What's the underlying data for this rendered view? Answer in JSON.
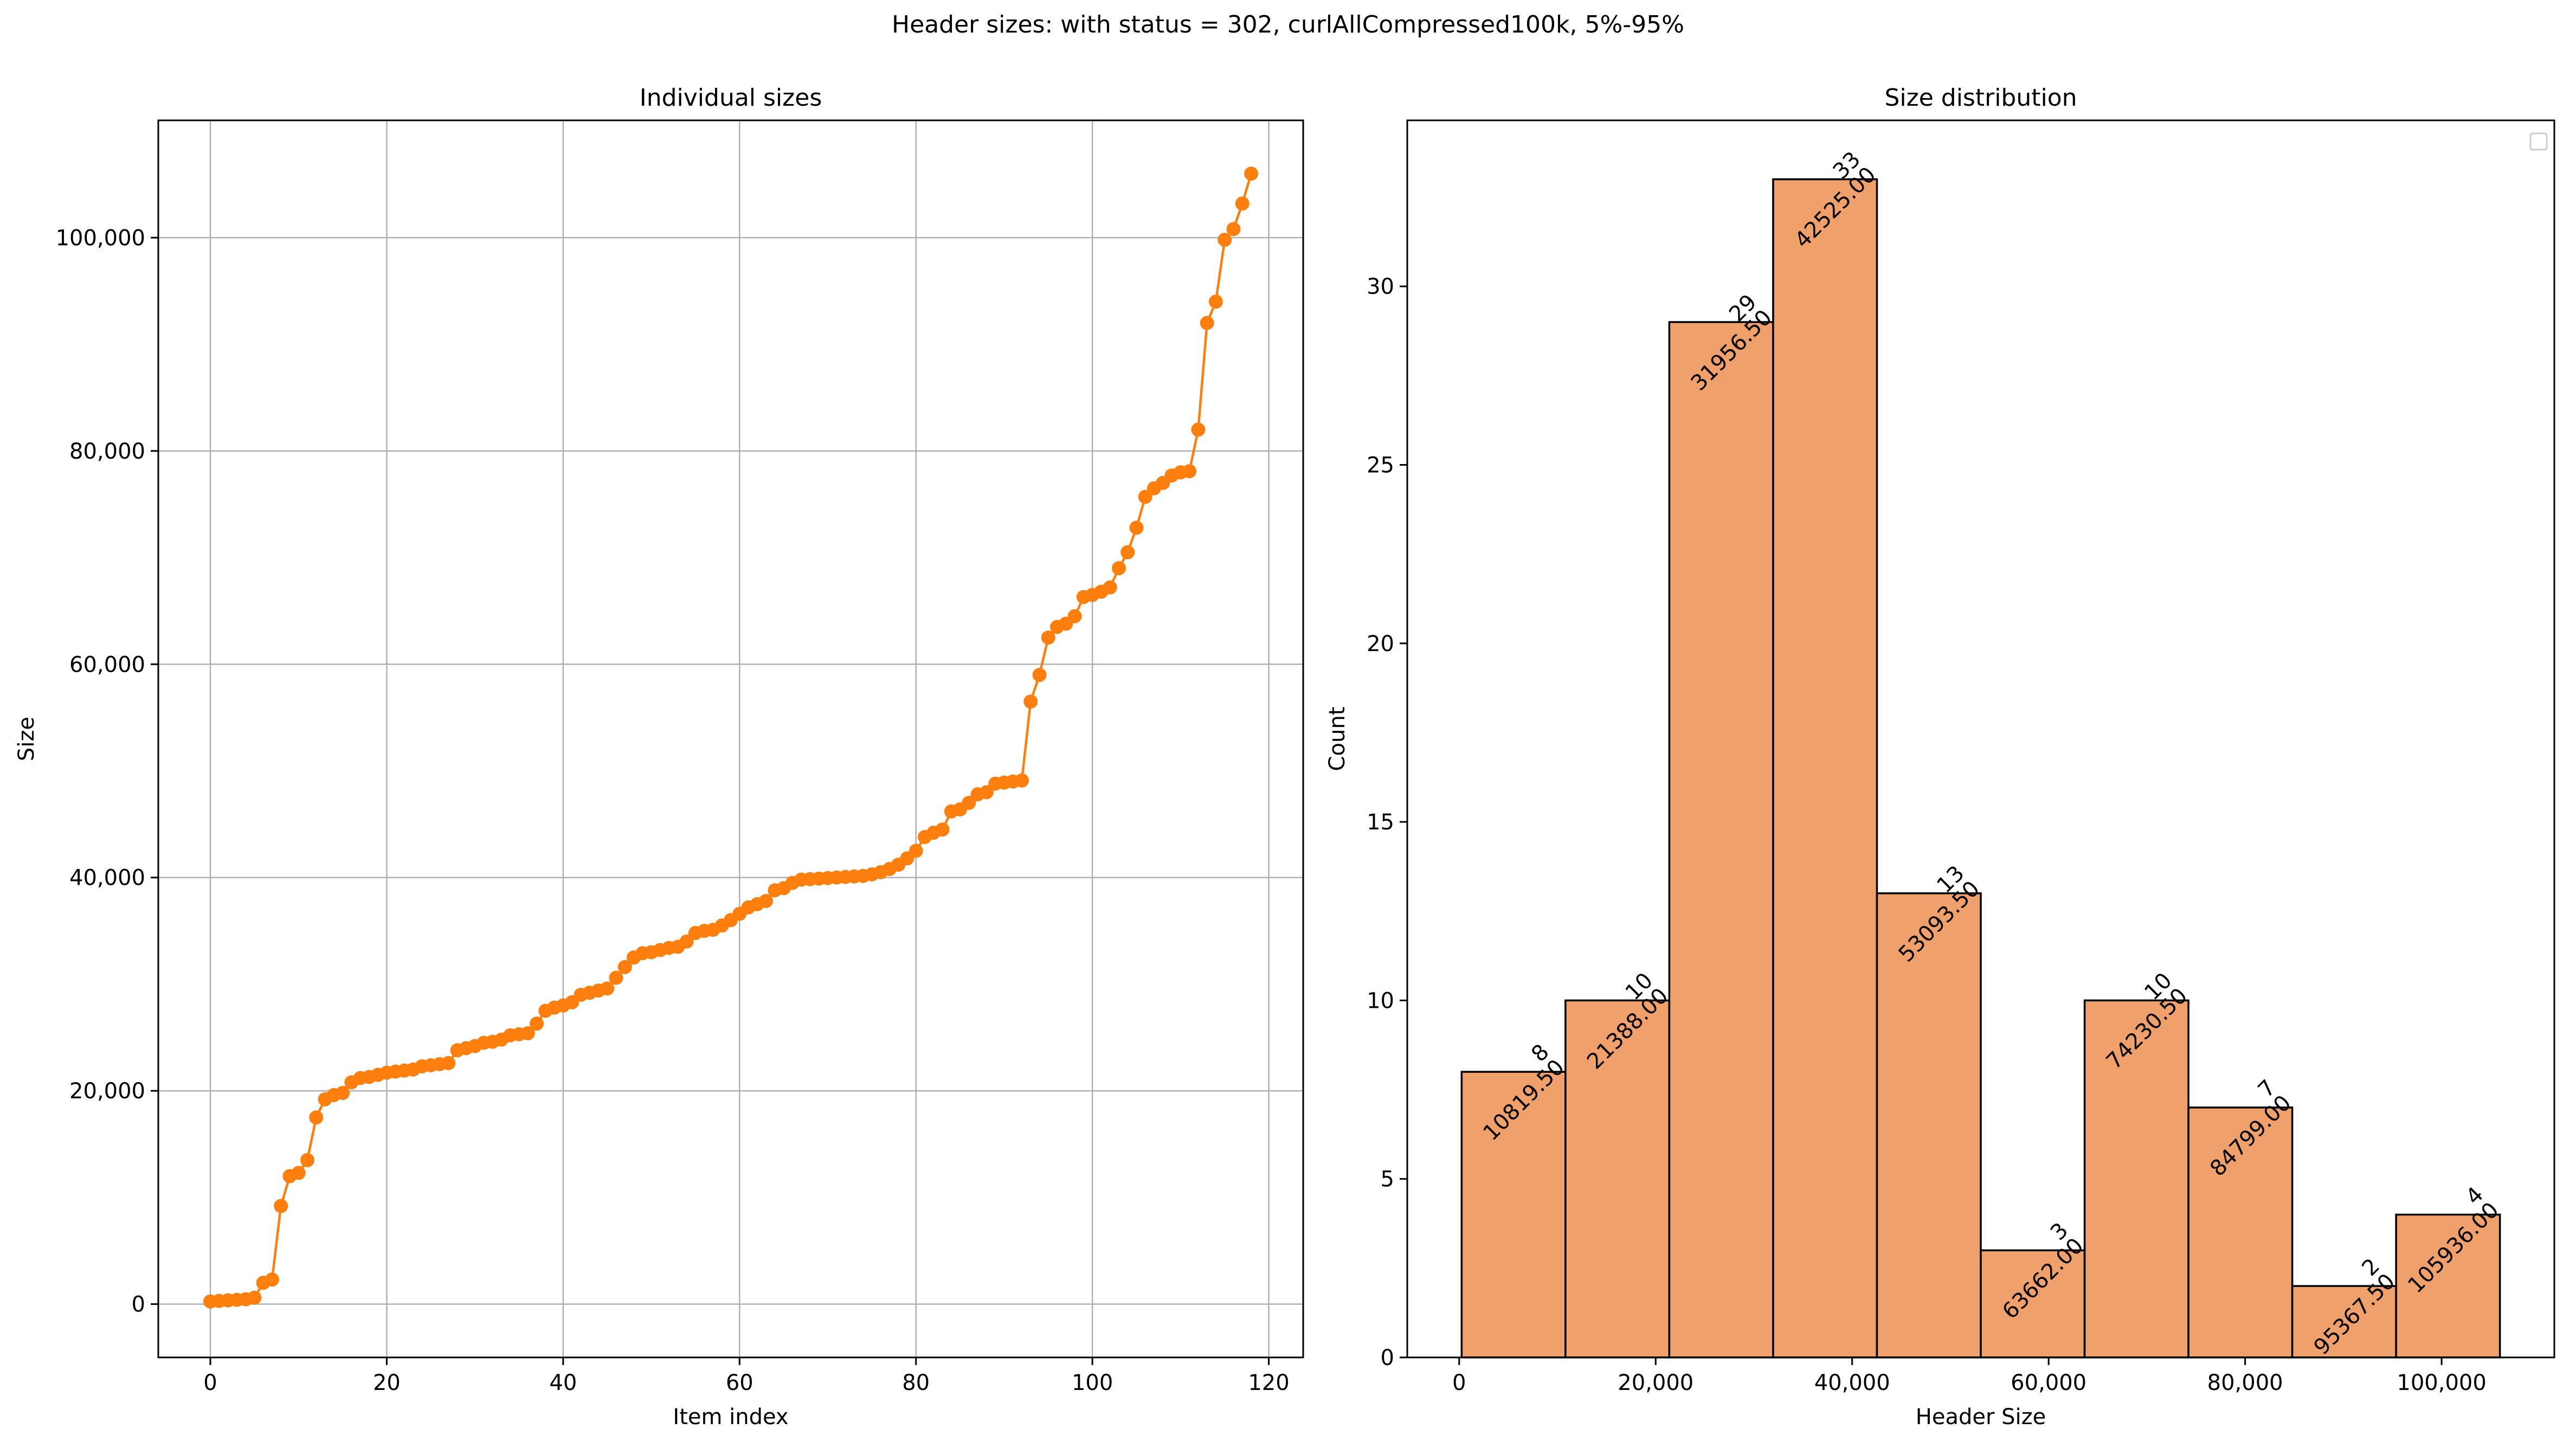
{
  "suptitle": "Header sizes: with status = 302, curlAllCompressed100k, 5%-95%",
  "chart_data": [
    {
      "type": "line",
      "title": "Individual sizes",
      "xlabel": "Item index",
      "ylabel": "Size",
      "xlim": [
        -5.9,
        123.9
      ],
      "ylim": [
        -5000,
        111000
      ],
      "grid": true,
      "marker": "circle",
      "color": "#ff7f0e",
      "x_ticks": [
        0,
        20,
        40,
        60,
        80,
        100,
        120
      ],
      "x_tick_labels": [
        "0",
        "20",
        "40",
        "60",
        "80",
        "100",
        "120"
      ],
      "y_ticks": [
        0,
        20000,
        40000,
        60000,
        80000,
        100000
      ],
      "y_tick_labels": [
        "0",
        "20,000",
        "40,000",
        "60,000",
        "80,000",
        "100,000"
      ],
      "values": [
        251,
        300,
        350,
        400,
        450,
        600,
        2000,
        2300,
        9200,
        12000,
        12300,
        13500,
        17500,
        19200,
        19600,
        19800,
        20800,
        21200,
        21300,
        21500,
        21700,
        21800,
        21900,
        22000,
        22300,
        22400,
        22500,
        22600,
        23800,
        24000,
        24200,
        24500,
        24600,
        24800,
        25200,
        25300,
        25400,
        26300,
        27500,
        27800,
        28000,
        28300,
        29000,
        29200,
        29400,
        29600,
        30600,
        31600,
        32500,
        32900,
        33000,
        33200,
        33400,
        33500,
        34000,
        34800,
        35000,
        35100,
        35500,
        36000,
        36600,
        37200,
        37500,
        37800,
        38800,
        39000,
        39500,
        39800,
        39850,
        39900,
        39950,
        40000,
        40050,
        40100,
        40150,
        40300,
        40500,
        40800,
        41200,
        41800,
        42500,
        43800,
        44200,
        44500,
        46200,
        46400,
        47000,
        47800,
        48000,
        48800,
        48900,
        49000,
        49100,
        56500,
        59000,
        62500,
        63500,
        63800,
        64500,
        66300,
        66500,
        66800,
        67200,
        69000,
        70500,
        72800,
        75700,
        76500,
        77000,
        77700,
        78000,
        78100,
        82000,
        92000,
        94000,
        99800,
        100800,
        103200,
        106000
      ]
    },
    {
      "type": "histogram",
      "title": "Size distribution",
      "xlabel": "Header Size",
      "ylabel": "Count",
      "xlim": [
        -5285,
        111472
      ],
      "ylim": [
        0,
        34.65
      ],
      "legend": "top-right",
      "color": "#f0a06a",
      "edgecolor": "#000000",
      "bin_edges": [
        251,
        10819.5,
        21388,
        31956.5,
        42525,
        53093.5,
        63662,
        74230.5,
        84799,
        95367.5,
        105936
      ],
      "counts": [
        8,
        10,
        29,
        33,
        13,
        3,
        10,
        7,
        2,
        4
      ],
      "bar_labels": [
        "8\n10819.50",
        "10\n21388.00",
        "29\n31956.50",
        "33\n42525.00",
        "13\n53093.50",
        "3\n63662.00",
        "10\n74230.50",
        "7\n84799.00",
        "2\n95367.50",
        "4\n105936.00"
      ],
      "x_ticks": [
        0,
        20000,
        40000,
        60000,
        80000,
        100000
      ],
      "x_tick_labels": [
        "0",
        "20,000",
        "40,000",
        "60,000",
        "80,000",
        "100,000"
      ],
      "y_ticks": [
        0,
        5,
        10,
        15,
        20,
        25,
        30
      ],
      "y_tick_labels": [
        "0",
        "5",
        "10",
        "15",
        "20",
        "25",
        "30"
      ]
    }
  ]
}
